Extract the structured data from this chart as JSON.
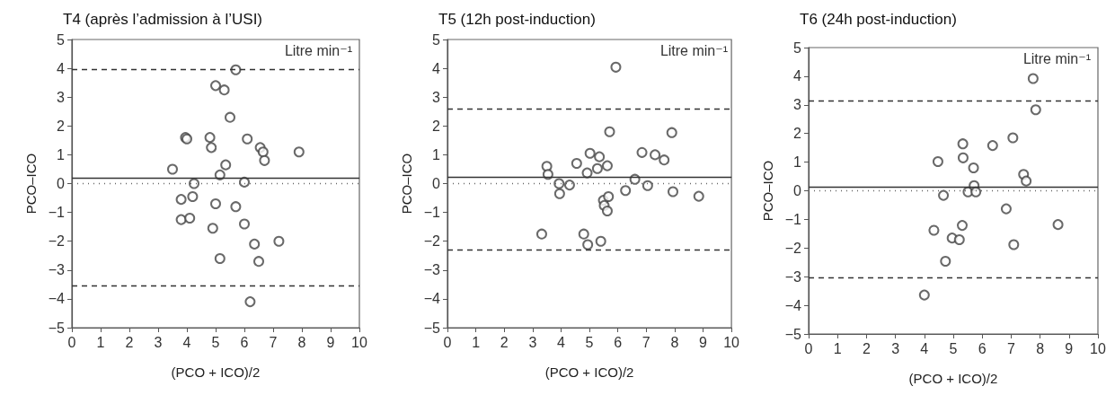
{
  "chart_data": [
    {
      "type": "scatter",
      "title": "T4 (après l’admission à l’USI)",
      "xlabel": "(PCO + ICO)/2",
      "ylabel": "PCO–ICO",
      "annotations": [
        "Litre min⁻¹"
      ],
      "marker": "circle",
      "grid": false,
      "xlim": [
        0,
        10
      ],
      "ylim": [
        -5,
        5
      ],
      "xticks": [
        0,
        1,
        2,
        3,
        4,
        5,
        6,
        7,
        8,
        9,
        10
      ],
      "yticks": [
        -5,
        -4,
        -3,
        -2,
        -1,
        0,
        1,
        2,
        3,
        4,
        5
      ],
      "ref_lines": [
        {
          "axis": "y",
          "value": 3.95,
          "line_style": "dashed",
          "color": "#333333"
        },
        {
          "axis": "y",
          "value": 0.2,
          "line_style": "solid",
          "color": "#333333"
        },
        {
          "axis": "y",
          "value": 0,
          "line_style": "dotted",
          "color": "#666666"
        },
        {
          "axis": "y",
          "value": -3.55,
          "line_style": "dashed",
          "color": "#333333"
        }
      ],
      "series": [
        {
          "color": "#444444",
          "x": [
            3.5,
            3.8,
            3.8,
            3.95,
            4.0,
            4.1,
            4.2,
            4.25,
            4.8,
            4.85,
            4.9,
            5.0,
            5.0,
            5.15,
            5.15,
            5.3,
            5.35,
            5.5,
            5.7,
            5.7,
            6.0,
            6.0,
            6.1,
            6.2,
            6.35,
            6.55,
            6.5,
            6.65,
            6.7,
            7.2,
            7.9
          ],
          "values": [
            0.5,
            -0.55,
            -1.25,
            1.6,
            1.55,
            -1.2,
            -0.45,
            0,
            1.6,
            1.25,
            -1.55,
            3.4,
            -0.7,
            0.3,
            -2.6,
            3.25,
            0.65,
            2.3,
            3.95,
            -0.8,
            0.05,
            -1.4,
            1.55,
            -4.1,
            -2.1,
            1.25,
            -2.7,
            1.1,
            0.8,
            -2.0,
            1.1
          ]
        }
      ]
    },
    {
      "type": "scatter",
      "title": "T5 (12h post-induction)",
      "xlabel": "(PCO + ICO)/2",
      "ylabel": "PCO–ICO",
      "annotations": [
        "Litre min⁻¹"
      ],
      "marker": "circle",
      "grid": false,
      "xlim": [
        0,
        10
      ],
      "ylim": [
        -5,
        5
      ],
      "xticks": [
        0,
        1,
        2,
        3,
        4,
        5,
        6,
        7,
        8,
        9,
        10
      ],
      "yticks": [
        -5,
        -4,
        -3,
        -2,
        -1,
        0,
        1,
        2,
        3,
        4,
        5
      ],
      "ref_lines": [
        {
          "axis": "y",
          "value": 2.58,
          "line_style": "dashed",
          "color": "#333333"
        },
        {
          "axis": "y",
          "value": 0.22,
          "line_style": "solid",
          "color": "#333333"
        },
        {
          "axis": "y",
          "value": 0,
          "line_style": "dotted",
          "color": "#666666"
        },
        {
          "axis": "y",
          "value": -2.3,
          "line_style": "dashed",
          "color": "#333333"
        }
      ],
      "series": [
        {
          "color": "#444444",
          "x": [
            3.32,
            3.5,
            3.54,
            3.93,
            3.95,
            4.3,
            4.55,
            4.8,
            4.92,
            4.94,
            5.02,
            5.28,
            5.35,
            5.4,
            5.49,
            5.52,
            5.63,
            5.63,
            5.67,
            5.71,
            5.93,
            6.27,
            6.6,
            6.85,
            7.05,
            7.31,
            7.63,
            7.9,
            7.94,
            8.85
          ],
          "values": [
            -1.75,
            0.6,
            0.32,
            0,
            -0.35,
            -0.05,
            0.7,
            -1.75,
            0.37,
            -2.12,
            1.05,
            0.52,
            0.93,
            -2.0,
            -0.58,
            -0.76,
            -0.95,
            0.62,
            -0.45,
            1.8,
            4.04,
            -0.24,
            0.15,
            1.08,
            -0.07,
            1.0,
            0.82,
            1.77,
            -0.28,
            -0.44
          ]
        }
      ]
    },
    {
      "type": "scatter",
      "title": "T6 (24h post-induction)",
      "xlabel": "(PCO + ICO)/2",
      "ylabel": "PCO–ICO",
      "annotations": [
        "Litre min⁻¹"
      ],
      "marker": "circle",
      "grid": false,
      "xlim": [
        0,
        10
      ],
      "ylim": [
        -5,
        5
      ],
      "xticks": [
        0,
        1,
        2,
        3,
        4,
        5,
        6,
        7,
        8,
        9,
        10
      ],
      "yticks": [
        -5,
        -4,
        -3,
        -2,
        -1,
        0,
        1,
        2,
        3,
        4,
        5
      ],
      "ref_lines": [
        {
          "axis": "y",
          "value": 3.15,
          "line_style": "dashed",
          "color": "#333333"
        },
        {
          "axis": "y",
          "value": 0.13,
          "line_style": "solid",
          "color": "#333333"
        },
        {
          "axis": "y",
          "value": 0,
          "line_style": "dotted",
          "color": "#666666"
        },
        {
          "axis": "y",
          "value": -3.02,
          "line_style": "dashed",
          "color": "#333333"
        }
      ],
      "series": [
        {
          "color": "#444444",
          "x": [
            4.0,
            4.33,
            4.47,
            4.66,
            4.73,
            4.96,
            5.21,
            5.31,
            5.33,
            5.34,
            5.51,
            5.7,
            5.72,
            5.78,
            6.36,
            6.83,
            7.06,
            7.09,
            7.43,
            7.52,
            7.76,
            7.85,
            8.62
          ],
          "values": [
            -3.64,
            -1.38,
            1.02,
            -0.16,
            -2.46,
            -1.65,
            -1.71,
            -1.21,
            1.64,
            1.15,
            -0.04,
            0.8,
            0.18,
            -0.04,
            1.58,
            -0.63,
            1.85,
            -1.88,
            0.57,
            0.34,
            3.92,
            2.83,
            -1.18
          ]
        }
      ]
    }
  ]
}
